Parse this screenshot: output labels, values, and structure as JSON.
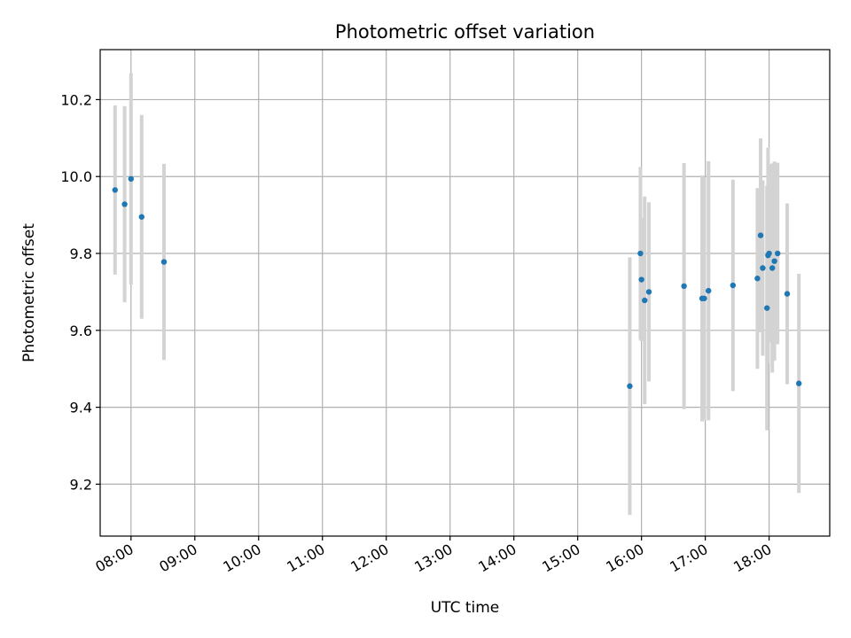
{
  "chart_data": {
    "type": "scatter",
    "title": "Photometric offset variation",
    "xlabel": "UTC time",
    "ylabel": "Photometric offset",
    "x_tick_labels": [
      "08:00",
      "09:00",
      "10:00",
      "11:00",
      "12:00",
      "13:00",
      "14:00",
      "15:00",
      "16:00",
      "17:00",
      "18:00"
    ],
    "y_tick_labels": [
      "9.2",
      "9.4",
      "9.6",
      "9.8",
      "10.0",
      "10.2"
    ],
    "xlim": [
      "07:31",
      "18:57"
    ],
    "ylim": [
      9.065,
      10.33
    ],
    "grid": true,
    "colors": {
      "point": "#1f77b4",
      "errorbar": "#d3d3d3"
    },
    "points": [
      {
        "x": "07:45",
        "y": 9.965,
        "yerr": 0.22
      },
      {
        "x": "07:54",
        "y": 9.928,
        "yerr": 0.255
      },
      {
        "x": "08:00",
        "y": 9.994,
        "yerr": 0.275
      },
      {
        "x": "08:10",
        "y": 9.895,
        "yerr": 0.265
      },
      {
        "x": "08:31",
        "y": 9.778,
        "yerr": 0.255
      },
      {
        "x": "15:49",
        "y": 9.455,
        "yerr": 0.335
      },
      {
        "x": "15:59",
        "y": 9.8,
        "yerr": 0.225
      },
      {
        "x": "16:00",
        "y": 9.732,
        "yerr": 0.16
      },
      {
        "x": "16:03",
        "y": 9.678,
        "yerr": 0.27
      },
      {
        "x": "16:07",
        "y": 9.7,
        "yerr": 0.233
      },
      {
        "x": "16:40",
        "y": 9.715,
        "yerr": 0.32
      },
      {
        "x": "16:57",
        "y": 9.683,
        "yerr": 0.32
      },
      {
        "x": "16:59",
        "y": 9.683,
        "yerr": 0.316
      },
      {
        "x": "17:03",
        "y": 9.703,
        "yerr": 0.337
      },
      {
        "x": "17:26",
        "y": 9.717,
        "yerr": 0.275
      },
      {
        "x": "17:49",
        "y": 9.735,
        "yerr": 0.235
      },
      {
        "x": "17:52",
        "y": 9.847,
        "yerr": 0.252
      },
      {
        "x": "17:54",
        "y": 9.762,
        "yerr": 0.228
      },
      {
        "x": "17:58",
        "y": 9.658,
        "yerr": 0.318
      },
      {
        "x": "17:59",
        "y": 9.795,
        "yerr": 0.28
      },
      {
        "x": "18:00",
        "y": 9.8,
        "yerr": 0.232
      },
      {
        "x": "18:03",
        "y": 9.762,
        "yerr": 0.272
      },
      {
        "x": "18:05",
        "y": 9.78,
        "yerr": 0.259
      },
      {
        "x": "18:08",
        "y": 9.8,
        "yerr": 0.236
      },
      {
        "x": "18:17",
        "y": 9.695,
        "yerr": 0.235
      },
      {
        "x": "18:28",
        "y": 9.462,
        "yerr": 0.285
      }
    ]
  }
}
